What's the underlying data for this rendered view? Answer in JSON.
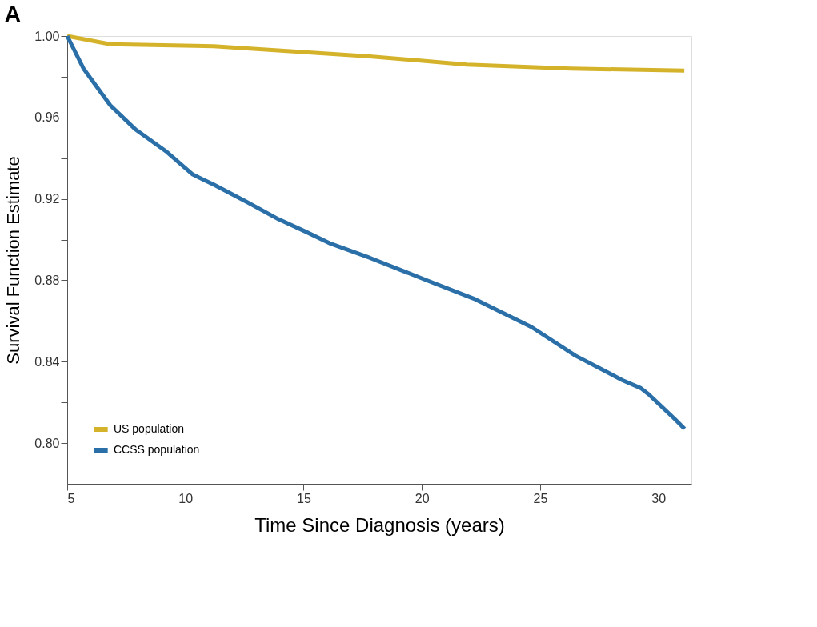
{
  "chart_data": {
    "type": "line",
    "title": "A",
    "xlabel": "Time Since Diagnosis (years)",
    "ylabel": "Survival Function Estimate",
    "xlim": [
      5,
      31.4
    ],
    "xticks": [
      5,
      10,
      15,
      20,
      25,
      30
    ],
    "ylim": [
      0.78,
      1.0
    ],
    "yticks": [
      {
        "value": 0.8,
        "label": "0.80"
      },
      {
        "value": 0.82,
        "label": null
      },
      {
        "value": 0.84,
        "label": "0.84"
      },
      {
        "value": 0.86,
        "label": null
      },
      {
        "value": 0.88,
        "label": "0.88"
      },
      {
        "value": 0.9,
        "label": null
      },
      {
        "value": 0.92,
        "label": "0.92"
      },
      {
        "value": 0.94,
        "label": null
      },
      {
        "value": 0.96,
        "label": "0.96"
      },
      {
        "value": 0.98,
        "label": null
      },
      {
        "value": 1.0,
        "label": "1.00"
      }
    ],
    "grid": false,
    "legend": "bottom left",
    "marker": "none",
    "line_style": "solid",
    "series": [
      {
        "name": "US population",
        "color": "#d4b22a",
        "x": [
          5,
          6.82,
          11.2,
          17.8,
          21.9,
          26.3,
          31.1
        ],
        "values": [
          1.0,
          0.996,
          0.995,
          0.99,
          0.986,
          0.984,
          0.983
        ]
      },
      {
        "name": "CCSS population",
        "color": "#2a6fa8",
        "x": [
          5,
          5.69,
          6.82,
          7.9,
          9.22,
          10.31,
          11.2,
          12.52,
          13.94,
          15.07,
          16.15,
          17.81,
          20.21,
          22.19,
          24.64,
          26.49,
          28.47,
          29.26,
          29.59,
          30.68,
          31.11
        ],
        "values": [
          1.0,
          0.984,
          0.966,
          0.954,
          0.943,
          0.932,
          0.927,
          0.919,
          0.91,
          0.904,
          0.898,
          0.891,
          0.88,
          0.871,
          0.857,
          0.843,
          0.831,
          0.827,
          0.824,
          0.812,
          0.807
        ]
      }
    ]
  }
}
